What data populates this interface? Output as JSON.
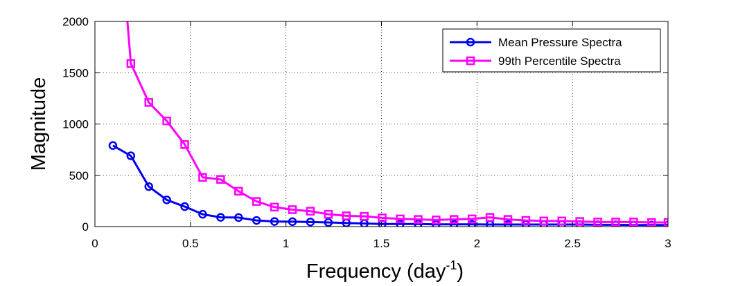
{
  "chart_data": {
    "type": "line",
    "title": "",
    "xlabel": {
      "main": "Frequency (day",
      "superscript": "-1",
      "close": ")"
    },
    "ylabel": "Magnitude",
    "xlim": [
      0,
      3
    ],
    "ylim": [
      0,
      2000
    ],
    "x_ticks": [
      "0",
      "0.5",
      "1",
      "1.5",
      "2",
      "2.5",
      "3"
    ],
    "y_ticks": [
      "0",
      "500",
      "1000",
      "1500",
      "2000"
    ],
    "x_tick_values": [
      0,
      0.5,
      1,
      1.5,
      2,
      2.5,
      3
    ],
    "y_tick_values": [
      0,
      500,
      1000,
      1500,
      2000
    ],
    "grid": true,
    "legend_position": "top-right",
    "series": [
      {
        "name": "Mean Pressure Spectra",
        "color": "#0000ee",
        "marker": "circle",
        "x": [
          0.094,
          0.188,
          0.282,
          0.376,
          0.47,
          0.564,
          0.658,
          0.752,
          0.846,
          0.94,
          1.034,
          1.128,
          1.222,
          1.316,
          1.41,
          1.504,
          1.598,
          1.692,
          1.786,
          1.88,
          1.974,
          2.068,
          2.162,
          2.256,
          2.35,
          2.444,
          2.538,
          2.632,
          2.726,
          2.82,
          2.914,
          3.0
        ],
        "y": [
          790,
          690,
          390,
          260,
          195,
          120,
          90,
          88,
          60,
          50,
          48,
          45,
          40,
          35,
          30,
          25,
          25,
          25,
          22,
          22,
          22,
          20,
          20,
          20,
          20,
          20,
          20,
          18,
          18,
          15,
          15,
          15
        ]
      },
      {
        "name": "99th Percentile Spectra",
        "color": "#ff00ff",
        "marker": "square",
        "x": [
          0.17,
          0.188,
          0.282,
          0.376,
          0.47,
          0.564,
          0.658,
          0.752,
          0.846,
          0.94,
          1.034,
          1.128,
          1.222,
          1.316,
          1.41,
          1.504,
          1.598,
          1.692,
          1.786,
          1.88,
          1.974,
          2.068,
          2.162,
          2.256,
          2.35,
          2.444,
          2.538,
          2.632,
          2.726,
          2.82,
          2.914,
          3.0
        ],
        "y": [
          2000,
          1590,
          1210,
          1030,
          800,
          480,
          460,
          345,
          245,
          190,
          165,
          150,
          120,
          105,
          100,
          85,
          75,
          70,
          65,
          70,
          75,
          90,
          70,
          60,
          55,
          55,
          50,
          45,
          45,
          45,
          40,
          40
        ],
        "marker_skip_first": true
      }
    ]
  }
}
